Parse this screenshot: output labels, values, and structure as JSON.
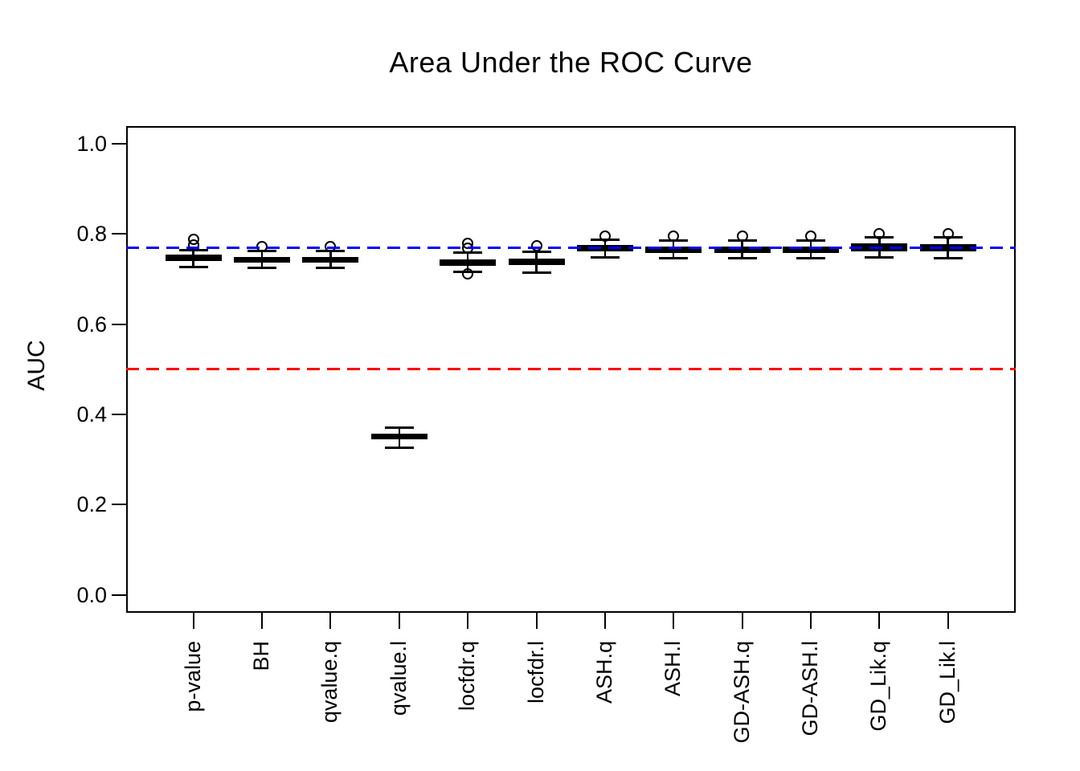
{
  "chart_data": {
    "type": "boxplot",
    "title": "Area Under the ROC Curve",
    "xlabel": "",
    "ylabel": "AUC",
    "ylim": [
      -0.04,
      1.04
    ],
    "y_ticks": [
      0.0,
      0.2,
      0.4,
      0.6,
      0.8,
      1.0
    ],
    "y_tick_labels": [
      "0.0",
      "0.2",
      "0.4",
      "0.6",
      "0.8",
      "1.0"
    ],
    "grid": "off",
    "legend": "none",
    "categories": [
      "p-value",
      "BH",
      "qvalue.q",
      "qvalue.l",
      "locfdr.q",
      "locfdr.l",
      "ASH.q",
      "ASH.l",
      "GD-ASH.q",
      "GD-ASH.l",
      "GD_Lik.q",
      "GD_Lik.l"
    ],
    "reference_lines": [
      {
        "name": "blue-dashed-reference-line",
        "value": 0.77,
        "color": "#0000ff",
        "style": "dashed"
      },
      {
        "name": "red-dashed-reference-line",
        "value": 0.5,
        "color": "#ff0000",
        "style": "dashed"
      }
    ],
    "boxes": [
      {
        "label": "p-value",
        "whisker_low": 0.727,
        "q1": 0.74,
        "median": 0.747,
        "q3": 0.755,
        "whisker_high": 0.765,
        "outliers": [
          0.788,
          0.776
        ]
      },
      {
        "label": "BH",
        "whisker_low": 0.726,
        "q1": 0.737,
        "median": 0.743,
        "q3": 0.749,
        "whisker_high": 0.762,
        "outliers": [
          0.773
        ]
      },
      {
        "label": "qvalue.q",
        "whisker_low": 0.726,
        "q1": 0.737,
        "median": 0.744,
        "q3": 0.75,
        "whisker_high": 0.763,
        "outliers": [
          0.773
        ]
      },
      {
        "label": "qvalue.l",
        "whisker_low": 0.326,
        "q1": 0.344,
        "median": 0.351,
        "q3": 0.358,
        "whisker_high": 0.371,
        "outliers": []
      },
      {
        "label": "locfdr.q",
        "whisker_low": 0.717,
        "q1": 0.73,
        "median": 0.737,
        "q3": 0.744,
        "whisker_high": 0.759,
        "outliers": [
          0.78,
          0.769,
          0.712
        ]
      },
      {
        "label": "locfdr.l",
        "whisker_low": 0.715,
        "q1": 0.731,
        "median": 0.738,
        "q3": 0.745,
        "whisker_high": 0.761,
        "outliers": [
          0.774
        ]
      },
      {
        "label": "ASH.q",
        "whisker_low": 0.749,
        "q1": 0.761,
        "median": 0.768,
        "q3": 0.776,
        "whisker_high": 0.788,
        "outliers": [
          0.795
        ]
      },
      {
        "label": "ASH.l",
        "whisker_low": 0.746,
        "q1": 0.758,
        "median": 0.765,
        "q3": 0.772,
        "whisker_high": 0.786,
        "outliers": [
          0.795
        ]
      },
      {
        "label": "GD-ASH.q",
        "whisker_low": 0.746,
        "q1": 0.758,
        "median": 0.766,
        "q3": 0.773,
        "whisker_high": 0.785,
        "outliers": [
          0.796
        ]
      },
      {
        "label": "GD-ASH.l",
        "whisker_low": 0.747,
        "q1": 0.758,
        "median": 0.766,
        "q3": 0.773,
        "whisker_high": 0.785,
        "outliers": [
          0.795
        ]
      },
      {
        "label": "GD_Lik.q",
        "whisker_low": 0.749,
        "q1": 0.762,
        "median": 0.77,
        "q3": 0.779,
        "whisker_high": 0.793,
        "outliers": [
          0.801
        ]
      },
      {
        "label": "GD_Lik.l",
        "whisker_low": 0.746,
        "q1": 0.761,
        "median": 0.77,
        "q3": 0.778,
        "whisker_high": 0.792,
        "outliers": [
          0.8
        ]
      }
    ]
  }
}
